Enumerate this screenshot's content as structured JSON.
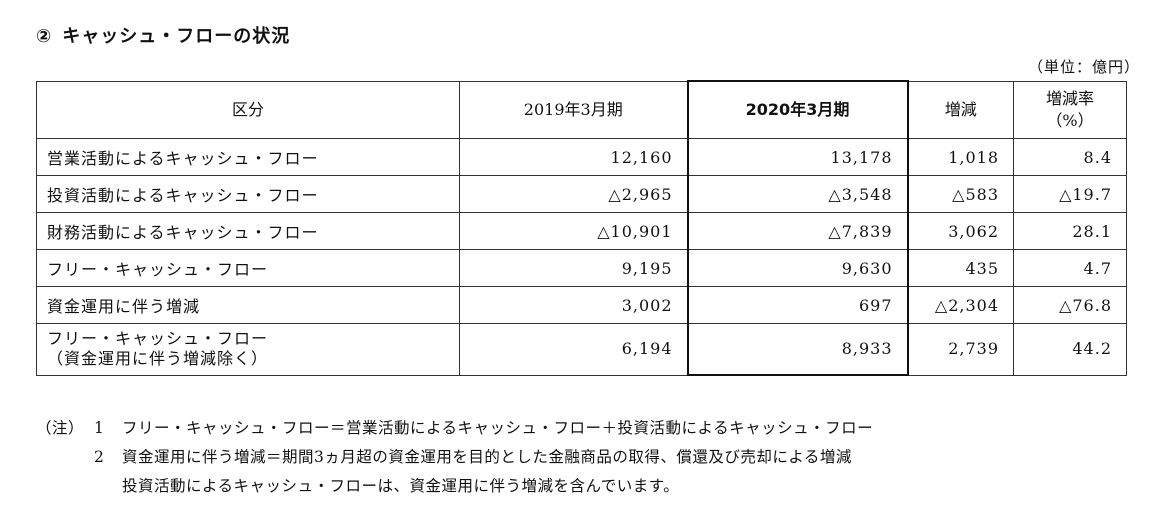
{
  "section": {
    "number": "②",
    "title": "キャッシュ・フローの状況"
  },
  "unit": "（単位：億円）",
  "table": {
    "headers": {
      "category": "区分",
      "fy2019": "2019年3月期",
      "fy2020": "2020年3月期",
      "change": "増減",
      "rate_line1": "増減率",
      "rate_line2": "（%）"
    },
    "rows": [
      {
        "label": "営業活動によるキャッシュ・フロー",
        "fy2019": "12,160",
        "fy2020": "13,178",
        "change": "1,018",
        "rate": "8.4"
      },
      {
        "label": "投資活動によるキャッシュ・フロー",
        "fy2019": "△2,965",
        "fy2020": "△3,548",
        "change": "△583",
        "rate": "△19.7"
      },
      {
        "label": "財務活動によるキャッシュ・フロー",
        "fy2019": "△10,901",
        "fy2020": "△7,839",
        "change": "3,062",
        "rate": "28.1"
      },
      {
        "label": "フリー・キャッシュ・フロー",
        "fy2019": "9,195",
        "fy2020": "9,630",
        "change": "435",
        "rate": "4.7"
      },
      {
        "label": "資金運用に伴う増減",
        "fy2019": "3,002",
        "fy2020": "697",
        "change": "△2,304",
        "rate": "△76.8"
      },
      {
        "label": "フリー・キャッシュ・フロー",
        "label_line2": "（資金運用に伴う増減除く）",
        "fy2019": "6,194",
        "fy2020": "8,933",
        "change": "2,739",
        "rate": "44.2"
      }
    ]
  },
  "notes": {
    "prefix": "（注）",
    "items": [
      {
        "num": "1",
        "text": "フリー・キャッシュ・フロー＝営業活動によるキャッシュ・フロー＋投資活動によるキャッシュ・フロー"
      },
      {
        "num": "2",
        "text": "資金運用に伴う増減＝期間3ヵ月超の資金運用を目的とした金融商品の取得、償還及び売却による増減"
      }
    ],
    "extra": "投資活動によるキャッシュ・フローは、資金運用に伴う増減を含んでいます。"
  }
}
